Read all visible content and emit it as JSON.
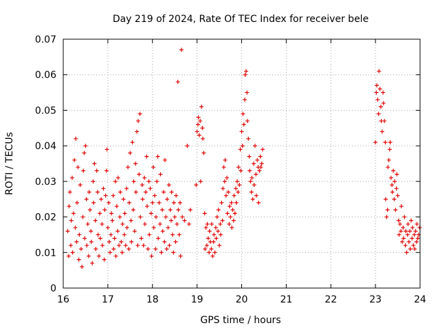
{
  "chart_data": {
    "type": "scatter",
    "title": "Day 219 of 2024, Rate Of TEC Index for receiver bele",
    "xlabel": "GPS time / hours",
    "ylabel": "ROTI / TECUs",
    "xlim": [
      16,
      24
    ],
    "ylim": [
      0,
      0.07
    ],
    "xticks": [
      16,
      17,
      18,
      19,
      20,
      21,
      22,
      23,
      24
    ],
    "xtick_labels": [
      "16",
      "17",
      "18",
      "19",
      "20",
      "21",
      "22",
      "23",
      "24"
    ],
    "yticks": [
      0,
      0.01,
      0.02,
      0.03,
      0.04,
      0.05,
      0.06,
      0.07
    ],
    "ytick_labels": [
      "0",
      "0.01",
      "0.02",
      "0.03",
      "0.04",
      "0.05",
      "0.06",
      "0.07"
    ],
    "grid": true,
    "marker": "+",
    "color": "#e00000",
    "series": [
      {
        "name": "ROTI",
        "points": [
          [
            16.1,
            0.016
          ],
          [
            16.12,
            0.009
          ],
          [
            16.13,
            0.023
          ],
          [
            16.15,
            0.027
          ],
          [
            16.17,
            0.012
          ],
          [
            16.18,
            0.019
          ],
          [
            16.2,
            0.031
          ],
          [
            16.21,
            0.01
          ],
          [
            16.23,
            0.021
          ],
          [
            16.25,
            0.036
          ],
          [
            16.27,
            0.017
          ],
          [
            16.28,
            0.042
          ],
          [
            16.3,
            0.013
          ],
          [
            16.31,
            0.024
          ],
          [
            16.33,
            0.034
          ],
          [
            16.35,
            0.008
          ],
          [
            16.36,
            0.015
          ],
          [
            16.38,
            0.029
          ],
          [
            16.4,
            0.011
          ],
          [
            16.42,
            0.006
          ],
          [
            16.44,
            0.02
          ],
          [
            16.45,
            0.033
          ],
          [
            16.47,
            0.038
          ],
          [
            16.48,
            0.014
          ],
          [
            16.5,
            0.04
          ],
          [
            16.52,
            0.025
          ],
          [
            16.53,
            0.012
          ],
          [
            16.55,
            0.018
          ],
          [
            16.57,
            0.009
          ],
          [
            16.58,
            0.027
          ],
          [
            16.6,
            0.022
          ],
          [
            16.62,
            0.016
          ],
          [
            16.63,
            0.013
          ],
          [
            16.65,
            0.007
          ],
          [
            16.67,
            0.03
          ],
          [
            16.68,
            0.024
          ],
          [
            16.7,
            0.035
          ],
          [
            16.72,
            0.019
          ],
          [
            16.73,
            0.011
          ],
          [
            16.75,
            0.033
          ],
          [
            16.77,
            0.027
          ],
          [
            16.78,
            0.015
          ],
          [
            16.8,
            0.009
          ],
          [
            16.82,
            0.021
          ],
          [
            16.83,
            0.014
          ],
          [
            16.85,
            0.025
          ],
          [
            16.87,
            0.018
          ],
          [
            16.88,
            0.012
          ],
          [
            16.9,
            0.028
          ],
          [
            16.92,
            0.008
          ],
          [
            16.93,
            0.022
          ],
          [
            16.95,
            0.026
          ],
          [
            16.97,
            0.033
          ],
          [
            16.98,
            0.039
          ],
          [
            17.0,
            0.017
          ],
          [
            17.02,
            0.024
          ],
          [
            17.03,
            0.013
          ],
          [
            17.05,
            0.01
          ],
          [
            17.07,
            0.015
          ],
          [
            17.08,
            0.021
          ],
          [
            17.1,
            0.019
          ],
          [
            17.12,
            0.026
          ],
          [
            17.13,
            0.011
          ],
          [
            17.15,
            0.014
          ],
          [
            17.17,
            0.03
          ],
          [
            17.18,
            0.009
          ],
          [
            17.2,
            0.023
          ],
          [
            17.22,
            0.016
          ],
          [
            17.23,
            0.031
          ],
          [
            17.25,
            0.012
          ],
          [
            17.27,
            0.02
          ],
          [
            17.28,
            0.027
          ],
          [
            17.3,
            0.013
          ],
          [
            17.32,
            0.01
          ],
          [
            17.33,
            0.018
          ],
          [
            17.35,
            0.025
          ],
          [
            17.37,
            0.015
          ],
          [
            17.38,
            0.021
          ],
          [
            17.4,
            0.012
          ],
          [
            17.42,
            0.028
          ],
          [
            17.43,
            0.017
          ],
          [
            17.45,
            0.034
          ],
          [
            17.47,
            0.011
          ],
          [
            17.48,
            0.024
          ],
          [
            17.5,
            0.038
          ],
          [
            17.52,
            0.019
          ],
          [
            17.53,
            0.013
          ],
          [
            17.55,
            0.041
          ],
          [
            17.57,
            0.022
          ],
          [
            17.58,
            0.03
          ],
          [
            17.6,
            0.016
          ],
          [
            17.62,
            0.035
          ],
          [
            17.63,
            0.027
          ],
          [
            17.65,
            0.044
          ],
          [
            17.67,
            0.012
          ],
          [
            17.68,
            0.047
          ],
          [
            17.7,
            0.032
          ],
          [
            17.72,
            0.049
          ],
          [
            17.73,
            0.02
          ],
          [
            17.75,
            0.014
          ],
          [
            17.77,
            0.029
          ],
          [
            17.78,
            0.025
          ],
          [
            17.8,
            0.012
          ],
          [
            17.82,
            0.031
          ],
          [
            17.83,
            0.018
          ],
          [
            17.85,
            0.027
          ],
          [
            17.87,
            0.037
          ],
          [
            17.88,
            0.023
          ],
          [
            17.9,
            0.011
          ],
          [
            17.92,
            0.03
          ],
          [
            17.93,
            0.015
          ],
          [
            17.95,
            0.028
          ],
          [
            17.97,
            0.021
          ],
          [
            17.98,
            0.009
          ],
          [
            18.0,
            0.024
          ],
          [
            18.02,
            0.034
          ],
          [
            18.03,
            0.017
          ],
          [
            18.05,
            0.026
          ],
          [
            18.07,
            0.011
          ],
          [
            18.08,
            0.02
          ],
          [
            18.1,
            0.03
          ],
          [
            18.12,
            0.037
          ],
          [
            18.13,
            0.014
          ],
          [
            18.15,
            0.024
          ],
          [
            18.17,
            0.018
          ],
          [
            18.18,
            0.032
          ],
          [
            18.2,
            0.01
          ],
          [
            18.22,
            0.022
          ],
          [
            18.23,
            0.016
          ],
          [
            18.25,
            0.027
          ],
          [
            18.27,
            0.013
          ],
          [
            18.28,
            0.036
          ],
          [
            18.3,
            0.02
          ],
          [
            18.32,
            0.011
          ],
          [
            18.33,
            0.025
          ],
          [
            18.35,
            0.017
          ],
          [
            18.37,
            0.029
          ],
          [
            18.38,
            0.012
          ],
          [
            18.4,
            0.022
          ],
          [
            18.42,
            0.019
          ],
          [
            18.43,
            0.027
          ],
          [
            18.45,
            0.015
          ],
          [
            18.47,
            0.01
          ],
          [
            18.48,
            0.024
          ],
          [
            18.5,
            0.02
          ],
          [
            18.52,
            0.013
          ],
          [
            18.53,
            0.026
          ],
          [
            18.55,
            0.018
          ],
          [
            18.57,
            0.058
          ],
          [
            18.58,
            0.022
          ],
          [
            18.6,
            0.015
          ],
          [
            18.62,
            0.024
          ],
          [
            18.63,
            0.009
          ],
          [
            18.65,
            0.067
          ],
          [
            18.67,
            0.02
          ],
          [
            18.72,
            0.019
          ],
          [
            18.78,
            0.04
          ],
          [
            18.82,
            0.018
          ],
          [
            18.85,
            0.022
          ],
          [
            18.98,
            0.029
          ],
          [
            19.0,
            0.044
          ],
          [
            19.02,
            0.046
          ],
          [
            19.03,
            0.048
          ],
          [
            19.05,
            0.043
          ],
          [
            19.07,
            0.047
          ],
          [
            19.08,
            0.03
          ],
          [
            19.1,
            0.051
          ],
          [
            19.12,
            0.045
          ],
          [
            19.13,
            0.042
          ],
          [
            19.15,
            0.038
          ],
          [
            19.17,
            0.021
          ],
          [
            19.18,
            0.011
          ],
          [
            19.2,
            0.017
          ],
          [
            19.22,
            0.012
          ],
          [
            19.23,
            0.018
          ],
          [
            19.25,
            0.014
          ],
          [
            19.27,
            0.01
          ],
          [
            19.28,
            0.016
          ],
          [
            19.3,
            0.013
          ],
          [
            19.32,
            0.011
          ],
          [
            19.33,
            0.018
          ],
          [
            19.35,
            0.009
          ],
          [
            19.37,
            0.013
          ],
          [
            19.38,
            0.015
          ],
          [
            19.4,
            0.01
          ],
          [
            19.42,
            0.017
          ],
          [
            19.43,
            0.014
          ],
          [
            19.45,
            0.02
          ],
          [
            19.47,
            0.016
          ],
          [
            19.48,
            0.022
          ],
          [
            19.5,
            0.012
          ],
          [
            19.52,
            0.018
          ],
          [
            19.53,
            0.015
          ],
          [
            19.55,
            0.024
          ],
          [
            19.57,
            0.019
          ],
          [
            19.58,
            0.028
          ],
          [
            19.6,
            0.034
          ],
          [
            19.62,
            0.03
          ],
          [
            19.63,
            0.036
          ],
          [
            19.65,
            0.026
          ],
          [
            19.67,
            0.031
          ],
          [
            19.68,
            0.021
          ],
          [
            19.7,
            0.027
          ],
          [
            19.72,
            0.018
          ],
          [
            19.73,
            0.023
          ],
          [
            19.75,
            0.02
          ],
          [
            19.77,
            0.024
          ],
          [
            19.78,
            0.017
          ],
          [
            19.8,
            0.022
          ],
          [
            19.82,
            0.019
          ],
          [
            19.83,
            0.026
          ],
          [
            19.85,
            0.021
          ],
          [
            19.87,
            0.028
          ],
          [
            19.88,
            0.024
          ],
          [
            19.9,
            0.03
          ],
          [
            19.92,
            0.027
          ],
          [
            19.93,
            0.034
          ],
          [
            19.95,
            0.029
          ],
          [
            19.97,
            0.039
          ],
          [
            19.98,
            0.033
          ],
          [
            20.0,
            0.044
          ],
          [
            20.02,
            0.04
          ],
          [
            20.03,
            0.049
          ],
          [
            20.05,
            0.046
          ],
          [
            20.07,
            0.053
          ],
          [
            20.08,
            0.06
          ],
          [
            20.1,
            0.061
          ],
          [
            20.12,
            0.055
          ],
          [
            20.13,
            0.047
          ],
          [
            20.15,
            0.042
          ],
          [
            20.17,
            0.037
          ],
          [
            20.18,
            0.033
          ],
          [
            20.2,
            0.03
          ],
          [
            20.22,
            0.027
          ],
          [
            20.23,
            0.031
          ],
          [
            20.25,
            0.025
          ],
          [
            20.27,
            0.035
          ],
          [
            20.28,
            0.029
          ],
          [
            20.3,
            0.04
          ],
          [
            20.32,
            0.032
          ],
          [
            20.33,
            0.026
          ],
          [
            20.35,
            0.036
          ],
          [
            20.37,
            0.034
          ],
          [
            20.38,
            0.024
          ],
          [
            20.4,
            0.033
          ],
          [
            20.42,
            0.037
          ],
          [
            20.43,
            0.034
          ],
          [
            20.45,
            0.035
          ],
          [
            20.47,
            0.039
          ],
          [
            23.0,
            0.041
          ],
          [
            23.02,
            0.055
          ],
          [
            23.03,
            0.057
          ],
          [
            23.05,
            0.053
          ],
          [
            23.07,
            0.049
          ],
          [
            23.08,
            0.061
          ],
          [
            23.1,
            0.056
          ],
          [
            23.12,
            0.051
          ],
          [
            23.13,
            0.047
          ],
          [
            23.15,
            0.044
          ],
          [
            23.17,
            0.055
          ],
          [
            23.18,
            0.052
          ],
          [
            23.2,
            0.047
          ],
          [
            23.22,
            0.041
          ],
          [
            23.23,
            0.025
          ],
          [
            23.25,
            0.02
          ],
          [
            23.27,
            0.022
          ],
          [
            23.28,
            0.034
          ],
          [
            23.3,
            0.036
          ],
          [
            23.32,
            0.039
          ],
          [
            23.33,
            0.041
          ],
          [
            23.35,
            0.031
          ],
          [
            23.37,
            0.029
          ],
          [
            23.38,
            0.027
          ],
          [
            23.4,
            0.033
          ],
          [
            23.42,
            0.025
          ],
          [
            23.43,
            0.03
          ],
          [
            23.45,
            0.022
          ],
          [
            23.47,
            0.028
          ],
          [
            23.48,
            0.032
          ],
          [
            23.5,
            0.026
          ],
          [
            23.52,
            0.019
          ],
          [
            23.53,
            0.015
          ],
          [
            23.55,
            0.018
          ],
          [
            23.57,
            0.016
          ],
          [
            23.58,
            0.023
          ],
          [
            23.6,
            0.013
          ],
          [
            23.62,
            0.017
          ],
          [
            23.63,
            0.014
          ],
          [
            23.65,
            0.02
          ],
          [
            23.67,
            0.012
          ],
          [
            23.68,
            0.016
          ],
          [
            23.7,
            0.01
          ],
          [
            23.72,
            0.015
          ],
          [
            23.73,
            0.018
          ],
          [
            23.75,
            0.013
          ],
          [
            23.77,
            0.016
          ],
          [
            23.78,
            0.011
          ],
          [
            23.8,
            0.019
          ],
          [
            23.82,
            0.014
          ],
          [
            23.83,
            0.017
          ],
          [
            23.85,
            0.012
          ],
          [
            23.87,
            0.015
          ],
          [
            23.88,
            0.011
          ],
          [
            23.9,
            0.016
          ],
          [
            23.92,
            0.013
          ],
          [
            23.93,
            0.018
          ],
          [
            23.95,
            0.014
          ],
          [
            23.97,
            0.015
          ],
          [
            23.99,
            0.017
          ]
        ]
      }
    ]
  }
}
